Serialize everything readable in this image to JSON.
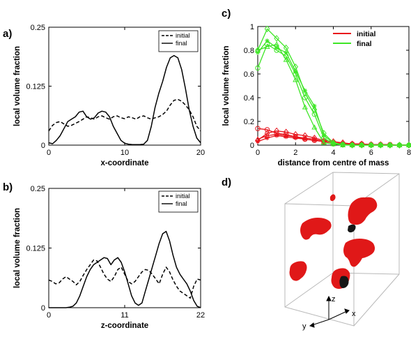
{
  "panels": {
    "a": {
      "label": "a)"
    },
    "b": {
      "label": "b)"
    },
    "c": {
      "label": "c)"
    },
    "d": {
      "label": "d)"
    }
  },
  "colors": {
    "axis": "#000000",
    "red": "#e8141c",
    "green": "#3ee626",
    "blob_red": "#e01818",
    "blob_dark": "#161616",
    "box": "#b8b8b8"
  },
  "chart_data": [
    {
      "id": "a",
      "type": "line",
      "xlabel": "x-coordinate",
      "ylabel": "local volume fraction",
      "xlim": [
        0,
        20
      ],
      "ylim": [
        0,
        0.25
      ],
      "xticks": [
        0,
        10,
        20
      ],
      "yticks": [
        0,
        0.125,
        0.25
      ],
      "ytick_labels": [
        "0",
        "0.125",
        "0.25"
      ],
      "legend": "top-right",
      "series": [
        {
          "name": "initial",
          "dash": "dashed",
          "x": [
            0,
            0.5,
            1,
            1.5,
            2,
            2.5,
            3,
            3.5,
            4,
            4.5,
            5,
            5.5,
            6,
            6.5,
            7,
            7.5,
            8,
            8.5,
            9,
            9.5,
            10,
            10.5,
            11,
            11.5,
            12,
            12.5,
            13,
            13.5,
            14,
            14.5,
            15,
            15.5,
            16,
            16.5,
            17,
            17.5,
            18,
            18.5,
            19,
            19.5,
            20
          ],
          "y": [
            0.03,
            0.042,
            0.048,
            0.05,
            0.045,
            0.04,
            0.042,
            0.046,
            0.05,
            0.055,
            0.06,
            0.058,
            0.055,
            0.06,
            0.062,
            0.058,
            0.055,
            0.06,
            0.062,
            0.058,
            0.056,
            0.06,
            0.058,
            0.055,
            0.06,
            0.062,
            0.058,
            0.055,
            0.058,
            0.06,
            0.065,
            0.072,
            0.085,
            0.095,
            0.097,
            0.093,
            0.085,
            0.075,
            0.06,
            0.04,
            0.03
          ]
        },
        {
          "name": "final",
          "dash": "solid",
          "x": [
            0,
            0.5,
            1,
            1.5,
            2,
            2.5,
            3,
            3.5,
            4,
            4.5,
            5,
            5.5,
            6,
            6.5,
            7,
            7.5,
            8,
            8.5,
            9,
            9.5,
            10,
            10.5,
            11,
            11.5,
            12,
            12.5,
            13,
            13.5,
            14,
            14.5,
            15,
            15.5,
            16,
            16.5,
            17,
            17.5,
            18,
            18.5,
            19,
            19.5,
            20
          ],
          "y": [
            0.005,
            0.003,
            0.01,
            0.02,
            0.035,
            0.05,
            0.055,
            0.06,
            0.07,
            0.072,
            0.06,
            0.055,
            0.058,
            0.068,
            0.072,
            0.07,
            0.06,
            0.04,
            0.025,
            0.01,
            0.004,
            0.002,
            0.001,
            0.001,
            0.001,
            0.002,
            0.01,
            0.04,
            0.08,
            0.11,
            0.135,
            0.165,
            0.185,
            0.19,
            0.185,
            0.16,
            0.12,
            0.075,
            0.04,
            0.015,
            0.005
          ]
        }
      ]
    },
    {
      "id": "b",
      "type": "line",
      "xlabel": "z-coordinate",
      "ylabel": "local volume fraction",
      "xlim": [
        0,
        22
      ],
      "ylim": [
        0,
        0.25
      ],
      "xticks": [
        0,
        11,
        22
      ],
      "yticks": [
        0,
        0.125,
        0.25
      ],
      "ytick_labels": [
        "0",
        "0.125",
        "0.25"
      ],
      "legend": "top-right",
      "series": [
        {
          "name": "initial",
          "dash": "dashed",
          "x": [
            0,
            0.5,
            1,
            1.5,
            2,
            2.5,
            3,
            3.5,
            4,
            4.5,
            5,
            5.5,
            6,
            6.5,
            7,
            7.5,
            8,
            8.5,
            9,
            9.5,
            10,
            10.5,
            11,
            11.5,
            12,
            12.5,
            13,
            13.5,
            14,
            14.5,
            15,
            15.5,
            16,
            16.5,
            17,
            17.5,
            18,
            18.5,
            19,
            19.5,
            20,
            20.5,
            21,
            21.5,
            22
          ],
          "y": [
            0.058,
            0.055,
            0.05,
            0.052,
            0.06,
            0.065,
            0.06,
            0.055,
            0.048,
            0.055,
            0.068,
            0.08,
            0.09,
            0.1,
            0.098,
            0.085,
            0.07,
            0.06,
            0.055,
            0.065,
            0.08,
            0.085,
            0.07,
            0.055,
            0.05,
            0.055,
            0.065,
            0.075,
            0.08,
            0.078,
            0.07,
            0.06,
            0.05,
            0.07,
            0.085,
            0.075,
            0.058,
            0.045,
            0.035,
            0.03,
            0.025,
            0.02,
            0.045,
            0.06,
            0.058
          ]
        },
        {
          "name": "final",
          "dash": "solid",
          "x": [
            0,
            0.5,
            1,
            1.5,
            2,
            2.5,
            3,
            3.5,
            4,
            4.5,
            5,
            5.5,
            6,
            6.5,
            7,
            7.5,
            8,
            8.5,
            9,
            9.5,
            10,
            10.5,
            11,
            11.5,
            12,
            12.5,
            13,
            13.5,
            14,
            14.5,
            15,
            15.5,
            16,
            16.5,
            17,
            17.5,
            18,
            18.5,
            19,
            19.5,
            20,
            20.5,
            21,
            21.5,
            22
          ],
          "y": [
            0,
            0,
            0,
            0,
            0,
            0,
            0.001,
            0.003,
            0.01,
            0.025,
            0.045,
            0.065,
            0.08,
            0.09,
            0.095,
            0.1,
            0.105,
            0.103,
            0.09,
            0.1,
            0.105,
            0.095,
            0.075,
            0.05,
            0.025,
            0.01,
            0.005,
            0.01,
            0.035,
            0.06,
            0.085,
            0.11,
            0.135,
            0.155,
            0.16,
            0.14,
            0.11,
            0.085,
            0.07,
            0.06,
            0.05,
            0.035,
            0.015,
            0.003,
            0
          ]
        }
      ]
    },
    {
      "id": "c",
      "type": "line",
      "xlabel": "distance from centre of mass",
      "ylabel": "local volume fraction",
      "xlim": [
        0,
        8
      ],
      "ylim": [
        0,
        1
      ],
      "xticks": [
        0,
        2,
        4,
        6,
        8
      ],
      "yticks": [
        0,
        0.2,
        0.4,
        0.6,
        0.8,
        1
      ],
      "ytick_labels": [
        "0",
        "0.2",
        "0.4",
        "0.6",
        "0.8",
        "1"
      ],
      "legend": "top-right",
      "x": [
        0,
        0.5,
        1,
        1.5,
        2,
        2.5,
        3,
        3.5,
        4,
        4.5,
        5,
        5.5,
        6,
        6.5,
        7,
        7.5,
        8
      ],
      "series": [
        {
          "name": "initial",
          "color": "#e8141c",
          "y": [
            0.14,
            0.13,
            0.1,
            0.09,
            0.07,
            0.05,
            0.04,
            0.03,
            0.02,
            0.01,
            0.01,
            0.01,
            0.005,
            0.005,
            0.005,
            0,
            0
          ],
          "marker": "circle"
        },
        {
          "color": "#e8141c",
          "y": [
            0.04,
            0.1,
            0.12,
            0.11,
            0.09,
            0.08,
            0.06,
            0.04,
            0.03,
            0.02,
            0.01,
            0.01,
            0.005,
            0.005,
            0,
            0,
            0
          ],
          "marker": "diamond"
        },
        {
          "color": "#e8141c",
          "y": [
            0.05,
            0.08,
            0.09,
            0.08,
            0.07,
            0.06,
            0.05,
            0.03,
            0.02,
            0.015,
            0.01,
            0.005,
            0.005,
            0,
            0,
            0,
            0
          ],
          "marker": "triangle"
        },
        {
          "color": "#e8141c",
          "y": [
            0.03,
            0.06,
            0.08,
            0.07,
            0.06,
            0.05,
            0.04,
            0.03,
            0.02,
            0.01,
            0.01,
            0.005,
            0,
            0,
            0,
            0,
            0
          ],
          "marker": "star"
        },
        {
          "name": "final",
          "color": "#3ee626",
          "y": [
            0.8,
            0.98,
            0.9,
            0.82,
            0.66,
            0.44,
            0.3,
            0.1,
            0.02,
            0.005,
            0,
            0,
            0,
            0,
            0,
            0,
            0
          ],
          "marker": "diamond"
        },
        {
          "color": "#3ee626",
          "y": [
            0.65,
            0.85,
            0.8,
            0.75,
            0.6,
            0.4,
            0.26,
            0.06,
            0.01,
            0.005,
            0,
            0,
            0,
            0,
            0,
            0,
            0
          ],
          "marker": "circle"
        },
        {
          "color": "#3ee626",
          "y": [
            0.8,
            0.83,
            0.85,
            0.72,
            0.55,
            0.32,
            0.15,
            0.02,
            0.01,
            0,
            0,
            0,
            0,
            0,
            0,
            0,
            0
          ],
          "marker": "triangle"
        },
        {
          "color": "#3ee626",
          "y": [
            0.78,
            0.88,
            0.82,
            0.78,
            0.62,
            0.46,
            0.33,
            0.08,
            0.02,
            0.005,
            0,
            0,
            0,
            0,
            0,
            0,
            0
          ],
          "marker": "star"
        }
      ]
    }
  ],
  "panel_d": {
    "axis_labels": {
      "x": "x",
      "y": "y",
      "z": "z"
    }
  }
}
